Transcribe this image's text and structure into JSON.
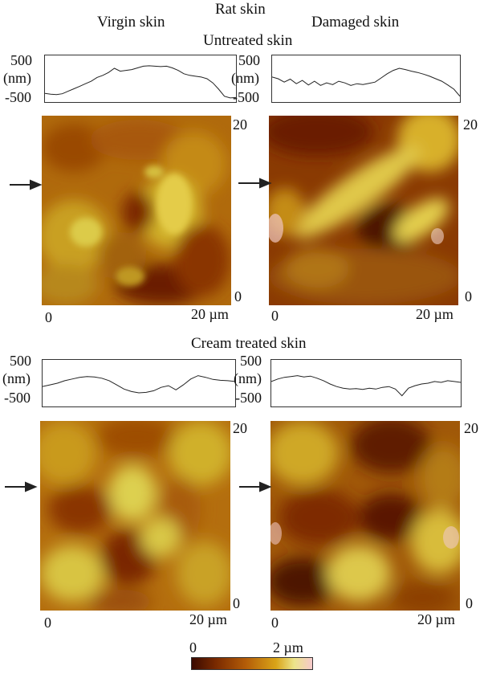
{
  "figure": {
    "header": {
      "rat_skin": "Rat skin",
      "virgin_skin": "Virgin skin",
      "damaged_skin": "Damaged skin"
    },
    "untreated": {
      "title": "Untreated skin",
      "profile_left": {
        "y_max": "500",
        "unit": "(nm)",
        "y_min": "-500",
        "trace_y_nm": [
          -350,
          -370,
          -380,
          -360,
          -300,
          -240,
          -180,
          -120,
          -60,
          30,
          80,
          150,
          250,
          180,
          200,
          220,
          260,
          300,
          310,
          300,
          290,
          300,
          260,
          200,
          120,
          80,
          60,
          40,
          0,
          -100,
          -250,
          -420,
          -460,
          -450
        ]
      },
      "profile_right": {
        "y_max": "500",
        "unit": "(nm)",
        "y_min": "-500",
        "trace_y_nm": [
          40,
          0,
          -80,
          -10,
          -120,
          -40,
          -150,
          -60,
          -160,
          -100,
          -140,
          -60,
          -100,
          -160,
          -120,
          -140,
          -110,
          -80,
          20,
          120,
          200,
          250,
          220,
          180,
          150,
          110,
          60,
          0,
          -60,
          -150,
          -250,
          -420
        ]
      },
      "panel_left": {
        "y_top": "20",
        "y_bottom": "0",
        "x_left": "0",
        "x_right": "20 µm"
      },
      "panel_right": {
        "y_top": "20",
        "y_bottom": "0",
        "x_left": "0",
        "x_right": "20 µm"
      }
    },
    "cream": {
      "title": "Cream treated skin",
      "profile_left": {
        "y_max": "500",
        "unit": "(nm)",
        "y_min": "-500",
        "trace_y_nm": [
          -80,
          -40,
          0,
          60,
          100,
          140,
          160,
          150,
          120,
          60,
          -40,
          -140,
          -200,
          -230,
          -220,
          -180,
          -100,
          -60,
          -160,
          -40,
          100,
          180,
          140,
          90,
          70,
          60,
          40
        ]
      },
      "profile_right": {
        "y_max": "500",
        "unit": "(nm)",
        "y_min": "-500",
        "trace_y_nm": [
          40,
          100,
          140,
          160,
          180,
          150,
          170,
          120,
          60,
          -20,
          -80,
          -120,
          -140,
          -130,
          -150,
          -120,
          -140,
          -100,
          -80,
          -140,
          -300,
          -120,
          -60,
          -20,
          0,
          40,
          20,
          60,
          40,
          20
        ]
      },
      "panel_left": {
        "y_top": "20",
        "y_bottom": "0",
        "x_left": "0",
        "x_right": "20 µm"
      },
      "panel_right": {
        "y_top": "20",
        "y_bottom": "0",
        "x_left": "0",
        "x_right": "20 µm"
      }
    },
    "colorbar": {
      "min_label": "0",
      "max_label": "2 µm",
      "colors": [
        "#3a0a00",
        "#7a2a00",
        "#b45d08",
        "#d9a418",
        "#ece48a",
        "#f6c9cb"
      ]
    }
  }
}
